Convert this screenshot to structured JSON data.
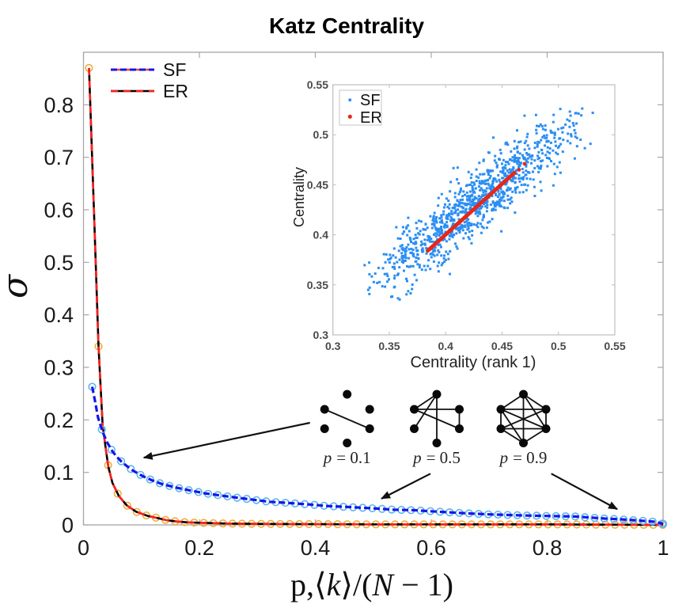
{
  "chart_data": [
    {
      "type": "line",
      "title": "Katz Centrality",
      "xlabel": "p,⟨k⟩/(N − 1)",
      "xlabel_parts": [
        {
          "t": "p,⟨",
          "italic": false
        },
        {
          "t": "k",
          "italic": true
        },
        {
          "t": "⟩/(",
          "italic": false
        },
        {
          "t": "N",
          "italic": true
        },
        {
          "t": " − 1)",
          "italic": false
        }
      ],
      "ylabel": "σ",
      "xlim": [
        0,
        1
      ],
      "ylim": [
        0,
        0.9
      ],
      "xticks": [
        0,
        0.2,
        0.4,
        0.6,
        0.8,
        1
      ],
      "yticks": [
        0,
        0.1,
        0.2,
        0.3,
        0.4,
        0.5,
        0.6,
        0.7,
        0.8
      ],
      "grid": false,
      "legend": "top-left",
      "series": [
        {
          "name": "SF",
          "line_color": "#1414ee",
          "marker_color": "#5cb6ee",
          "line_style": "dashed",
          "marker": "open-circle",
          "marker_start": 0.015,
          "marker_step": 0.01667,
          "x": [
            0.015,
            0.02,
            0.025,
            0.033,
            0.041,
            0.05,
            0.058,
            0.066,
            0.076,
            0.086,
            0.102,
            0.118,
            0.135,
            0.16,
            0.187,
            0.21,
            0.237,
            0.271,
            0.3,
            0.321,
            0.35,
            0.389,
            0.42,
            0.458,
            0.508,
            0.535,
            0.57,
            0.6,
            0.662,
            0.7,
            0.762,
            0.8,
            0.849,
            0.9,
            0.922,
            0.95,
            0.986,
            1.0
          ],
          "y": [
            0.263,
            0.235,
            0.205,
            0.177,
            0.157,
            0.14,
            0.129,
            0.12,
            0.111,
            0.103,
            0.093,
            0.085,
            0.078,
            0.071,
            0.065,
            0.06,
            0.056,
            0.051,
            0.047,
            0.044,
            0.042,
            0.039,
            0.036,
            0.034,
            0.031,
            0.029,
            0.028,
            0.026,
            0.022,
            0.02,
            0.018,
            0.017,
            0.016,
            0.012,
            0.011,
            0.009,
            0.006,
            0.002
          ]
        },
        {
          "name": "ER",
          "line_color": "#000000",
          "dash_color": "#ff1f1f",
          "marker_color": "#f0ae3c",
          "line_style": "solid-with-red-dashes",
          "marker": "open-circle",
          "marker_start": 0.0095,
          "marker_step": 0.0165,
          "x": [
            0.0095,
            0.018,
            0.026,
            0.033,
            0.039,
            0.043,
            0.05,
            0.061,
            0.075,
            0.091,
            0.111,
            0.128,
            0.143,
            0.161,
            0.178,
            0.2,
            0.25,
            0.3,
            0.4,
            0.5,
            0.6,
            0.8,
            1.0
          ],
          "y": [
            0.87,
            0.6,
            0.34,
            0.19,
            0.14,
            0.11,
            0.08,
            0.055,
            0.037,
            0.025,
            0.017,
            0.013,
            0.009,
            0.0065,
            0.005,
            0.004,
            0.0025,
            0.002,
            0.0015,
            0.001,
            0.001,
            0.001,
            0.0
          ]
        }
      ]
    },
    {
      "type": "scatter",
      "inset": true,
      "title": "",
      "xlabel": "Centrality (rank 1)",
      "ylabel": "Centrality",
      "xlim": [
        0.3,
        0.55
      ],
      "ylim": [
        0.3,
        0.55
      ],
      "xticks": [
        0.3,
        0.35,
        0.4,
        0.45,
        0.5,
        0.55
      ],
      "yticks": [
        0.3,
        0.35,
        0.4,
        0.45,
        0.5,
        0.55
      ],
      "grid": false,
      "legend": "top-left",
      "series": [
        {
          "name": "SF",
          "color": "#2b8ef2",
          "marker": "square",
          "n_points": 1000,
          "distribution": {
            "x_mean": 0.425,
            "x_sd": 0.045,
            "slope": 0.88,
            "intercept": 0.058,
            "residual_sd": 0.016,
            "x_range": [
              0.325,
              0.532
            ],
            "y_range": [
              0.333,
              0.527
            ],
            "seed": 11
          }
        },
        {
          "name": "ER",
          "color": "#e5281b",
          "marker": "dot",
          "n_points": 180,
          "line_from": [
            0.384,
            0.384
          ],
          "line_to": [
            0.461,
            0.462
          ],
          "extra_points": [
            [
              0.465,
              0.465
            ],
            [
              0.47,
              0.471
            ]
          ]
        }
      ]
    }
  ],
  "annotations": {
    "networks": [
      {
        "var": "p",
        "value_text": "= 0.1",
        "p": 0.1,
        "nodes": 6,
        "edges": [
          [
            5,
            2
          ]
        ],
        "points_to": {
          "series": "SF",
          "x": 0.104,
          "sigma": 0.128
        }
      },
      {
        "var": "p",
        "value_text": "= 0.5",
        "p": 0.5,
        "nodes": 6,
        "edges": [
          [
            0,
            5
          ],
          [
            0,
            4
          ],
          [
            0,
            3
          ],
          [
            5,
            1
          ],
          [
            5,
            2
          ],
          [
            1,
            2
          ]
        ],
        "points_to": {
          "series": "SF",
          "x": 0.514,
          "sigma": 0.05
        }
      },
      {
        "var": "p",
        "value_text": "= 0.9",
        "p": 0.9,
        "nodes": 6,
        "edges": [
          [
            0,
            5
          ],
          [
            0,
            1
          ],
          [
            0,
            3
          ],
          [
            0,
            2
          ],
          [
            5,
            1
          ],
          [
            5,
            4
          ],
          [
            5,
            2
          ],
          [
            5,
            3
          ],
          [
            4,
            2
          ],
          [
            4,
            1
          ],
          [
            1,
            2
          ],
          [
            2,
            3
          ],
          [
            4,
            3
          ]
        ],
        "points_to": {
          "series": "SF",
          "x": 0.921,
          "sigma": 0.03
        }
      }
    ]
  }
}
